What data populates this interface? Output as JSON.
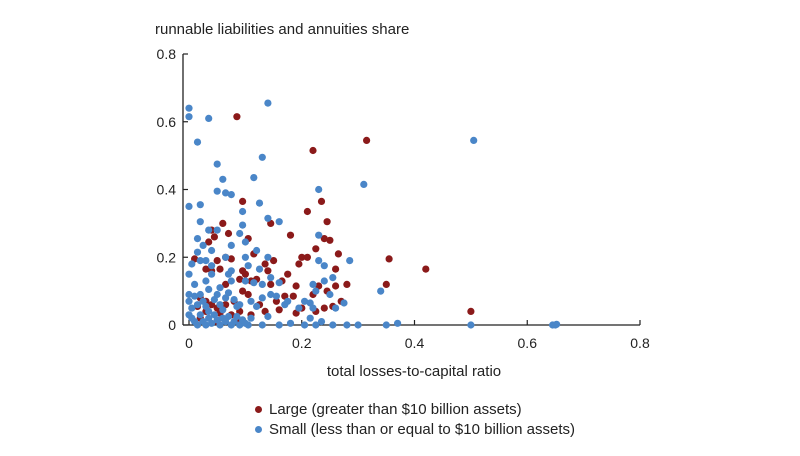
{
  "chart_data": {
    "type": "scatter",
    "title": "",
    "ylabel": "runnable liabilities and annuities share",
    "xlabel": "total losses-to-capital ratio",
    "xlim": [
      0,
      0.8
    ],
    "ylim": [
      0,
      0.8
    ],
    "x_ticks": [
      "0",
      "0.2",
      "0.4",
      "0.6",
      "0.8"
    ],
    "y_ticks": [
      "0",
      "0.2",
      "0.4",
      "0.6",
      "0.8"
    ],
    "grid": false,
    "legend_position": "bottom",
    "series": [
      {
        "name": "Large (greater than $10 billion assets)",
        "color": "#8b1a1a",
        "points": [
          [
            0.085,
            0.615
          ],
          [
            0.315,
            0.545
          ],
          [
            0.22,
            0.515
          ],
          [
            0.21,
            0.335
          ],
          [
            0.235,
            0.365
          ],
          [
            0.245,
            0.305
          ],
          [
            0.095,
            0.365
          ],
          [
            0.145,
            0.3
          ],
          [
            0.06,
            0.3
          ],
          [
            0.07,
            0.27
          ],
          [
            0.04,
            0.28
          ],
          [
            0.035,
            0.245
          ],
          [
            0.045,
            0.26
          ],
          [
            0.105,
            0.255
          ],
          [
            0.18,
            0.265
          ],
          [
            0.24,
            0.255
          ],
          [
            0.25,
            0.25
          ],
          [
            0.225,
            0.225
          ],
          [
            0.265,
            0.21
          ],
          [
            0.2,
            0.2
          ],
          [
            0.21,
            0.2
          ],
          [
            0.195,
            0.18
          ],
          [
            0.355,
            0.195
          ],
          [
            0.42,
            0.165
          ],
          [
            0.26,
            0.165
          ],
          [
            0.15,
            0.19
          ],
          [
            0.14,
            0.16
          ],
          [
            0.175,
            0.15
          ],
          [
            0.05,
            0.19
          ],
          [
            0.065,
            0.2
          ],
          [
            0.075,
            0.195
          ],
          [
            0.01,
            0.195
          ],
          [
            0.03,
            0.165
          ],
          [
            0.04,
            0.16
          ],
          [
            0.055,
            0.165
          ],
          [
            0.1,
            0.15
          ],
          [
            0.09,
            0.135
          ],
          [
            0.11,
            0.13
          ],
          [
            0.12,
            0.135
          ],
          [
            0.145,
            0.12
          ],
          [
            0.165,
            0.13
          ],
          [
            0.19,
            0.115
          ],
          [
            0.23,
            0.115
          ],
          [
            0.22,
            0.09
          ],
          [
            0.245,
            0.1
          ],
          [
            0.26,
            0.115
          ],
          [
            0.28,
            0.12
          ],
          [
            0.35,
            0.12
          ],
          [
            0.27,
            0.07
          ],
          [
            0.255,
            0.055
          ],
          [
            0.24,
            0.05
          ],
          [
            0.225,
            0.04
          ],
          [
            0.2,
            0.05
          ],
          [
            0.185,
            0.085
          ],
          [
            0.17,
            0.085
          ],
          [
            0.155,
            0.07
          ],
          [
            0.125,
            0.06
          ],
          [
            0.105,
            0.09
          ],
          [
            0.095,
            0.1
          ],
          [
            0.08,
            0.07
          ],
          [
            0.065,
            0.06
          ],
          [
            0.05,
            0.05
          ],
          [
            0.04,
            0.06
          ],
          [
            0.03,
            0.07
          ],
          [
            0.02,
            0.08
          ],
          [
            0.015,
            0.055
          ],
          [
            0.03,
            0.04
          ],
          [
            0.055,
            0.035
          ],
          [
            0.075,
            0.03
          ],
          [
            0.09,
            0.04
          ],
          [
            0.11,
            0.03
          ],
          [
            0.135,
            0.04
          ],
          [
            0.16,
            0.045
          ],
          [
            0.19,
            0.035
          ],
          [
            0.02,
            0.02
          ],
          [
            0.05,
            0.01
          ],
          [
            0.085,
            0.015
          ],
          [
            0.5,
            0.04
          ],
          [
            0.065,
            0.12
          ],
          [
            0.095,
            0.16
          ],
          [
            0.115,
            0.21
          ],
          [
            0.135,
            0.18
          ]
        ]
      },
      {
        "name": "Small (less than or equal to $10 billion assets)",
        "color": "#4a86c8",
        "points": [
          [
            0.0,
            0.64
          ],
          [
            0.0,
            0.615
          ],
          [
            0.035,
            0.61
          ],
          [
            0.14,
            0.655
          ],
          [
            0.015,
            0.54
          ],
          [
            0.05,
            0.475
          ],
          [
            0.13,
            0.495
          ],
          [
            0.505,
            0.545
          ],
          [
            0.31,
            0.415
          ],
          [
            0.06,
            0.43
          ],
          [
            0.115,
            0.435
          ],
          [
            0.05,
            0.395
          ],
          [
            0.065,
            0.39
          ],
          [
            0.075,
            0.385
          ],
          [
            0.23,
            0.4
          ],
          [
            0.0,
            0.35
          ],
          [
            0.02,
            0.355
          ],
          [
            0.095,
            0.335
          ],
          [
            0.125,
            0.36
          ],
          [
            0.14,
            0.315
          ],
          [
            0.16,
            0.305
          ],
          [
            0.02,
            0.305
          ],
          [
            0.035,
            0.28
          ],
          [
            0.05,
            0.28
          ],
          [
            0.095,
            0.295
          ],
          [
            0.09,
            0.27
          ],
          [
            0.015,
            0.255
          ],
          [
            0.075,
            0.235
          ],
          [
            0.1,
            0.245
          ],
          [
            0.23,
            0.265
          ],
          [
            0.025,
            0.235
          ],
          [
            0.04,
            0.22
          ],
          [
            0.065,
            0.2
          ],
          [
            0.075,
            0.16
          ],
          [
            0.1,
            0.2
          ],
          [
            0.14,
            0.2
          ],
          [
            0.12,
            0.22
          ],
          [
            0.005,
            0.18
          ],
          [
            0.015,
            0.215
          ],
          [
            0.02,
            0.19
          ],
          [
            0.03,
            0.19
          ],
          [
            0.04,
            0.175
          ],
          [
            0.04,
            0.15
          ],
          [
            0.07,
            0.15
          ],
          [
            0.105,
            0.175
          ],
          [
            0.125,
            0.165
          ],
          [
            0.145,
            0.14
          ],
          [
            0.23,
            0.19
          ],
          [
            0.24,
            0.175
          ],
          [
            0.285,
            0.19
          ],
          [
            0.0,
            0.15
          ],
          [
            0.01,
            0.12
          ],
          [
            0.03,
            0.13
          ],
          [
            0.035,
            0.105
          ],
          [
            0.055,
            0.11
          ],
          [
            0.075,
            0.13
          ],
          [
            0.1,
            0.13
          ],
          [
            0.115,
            0.125
          ],
          [
            0.13,
            0.12
          ],
          [
            0.16,
            0.125
          ],
          [
            0.22,
            0.12
          ],
          [
            0.24,
            0.13
          ],
          [
            0.255,
            0.14
          ],
          [
            0.34,
            0.1
          ],
          [
            0.0,
            0.09
          ],
          [
            0.0,
            0.07
          ],
          [
            0.005,
            0.05
          ],
          [
            0.01,
            0.085
          ],
          [
            0.015,
            0.06
          ],
          [
            0.02,
            0.09
          ],
          [
            0.025,
            0.07
          ],
          [
            0.03,
            0.055
          ],
          [
            0.035,
            0.04
          ],
          [
            0.045,
            0.075
          ],
          [
            0.05,
            0.09
          ],
          [
            0.055,
            0.06
          ],
          [
            0.06,
            0.045
          ],
          [
            0.065,
            0.08
          ],
          [
            0.07,
            0.095
          ],
          [
            0.08,
            0.075
          ],
          [
            0.085,
            0.055
          ],
          [
            0.09,
            0.06
          ],
          [
            0.11,
            0.07
          ],
          [
            0.12,
            0.055
          ],
          [
            0.13,
            0.08
          ],
          [
            0.145,
            0.09
          ],
          [
            0.155,
            0.085
          ],
          [
            0.17,
            0.06
          ],
          [
            0.175,
            0.07
          ],
          [
            0.195,
            0.05
          ],
          [
            0.205,
            0.07
          ],
          [
            0.215,
            0.065
          ],
          [
            0.22,
            0.05
          ],
          [
            0.225,
            0.1
          ],
          [
            0.25,
            0.09
          ],
          [
            0.26,
            0.05
          ],
          [
            0.275,
            0.065
          ],
          [
            0.0,
            0.03
          ],
          [
            0.005,
            0.02
          ],
          [
            0.01,
            0.01
          ],
          [
            0.015,
            0.0
          ],
          [
            0.02,
            0.03
          ],
          [
            0.025,
            0.01
          ],
          [
            0.03,
            0.0
          ],
          [
            0.035,
            0.02
          ],
          [
            0.04,
            0.005
          ],
          [
            0.045,
            0.03
          ],
          [
            0.05,
            0.015
          ],
          [
            0.055,
            0.0
          ],
          [
            0.06,
            0.02
          ],
          [
            0.065,
            0.01
          ],
          [
            0.07,
            0.025
          ],
          [
            0.075,
            0.0
          ],
          [
            0.08,
            0.01
          ],
          [
            0.085,
            0.025
          ],
          [
            0.09,
            0.0
          ],
          [
            0.095,
            0.015
          ],
          [
            0.1,
            0.005
          ],
          [
            0.105,
            0.0
          ],
          [
            0.11,
            0.02
          ],
          [
            0.13,
            0.0
          ],
          [
            0.14,
            0.025
          ],
          [
            0.16,
            0.0
          ],
          [
            0.18,
            0.005
          ],
          [
            0.205,
            0.0
          ],
          [
            0.215,
            0.02
          ],
          [
            0.225,
            0.0
          ],
          [
            0.235,
            0.01
          ],
          [
            0.255,
            0.0
          ],
          [
            0.28,
            0.0
          ],
          [
            0.3,
            0.0
          ],
          [
            0.35,
            0.0
          ],
          [
            0.37,
            0.005
          ],
          [
            0.5,
            0.0
          ],
          [
            0.645,
            0.0
          ],
          [
            0.65,
            0.0
          ],
          [
            0.652,
            0.002
          ]
        ]
      }
    ]
  }
}
